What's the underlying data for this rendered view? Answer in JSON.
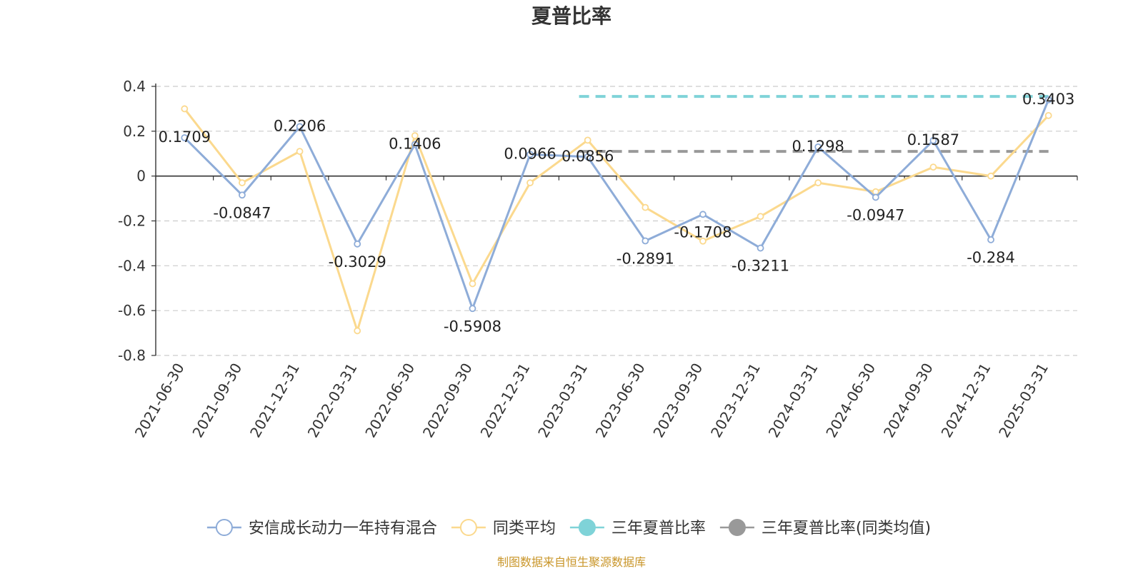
{
  "chart_data": {
    "type": "line",
    "title": "夏普比率",
    "categories": [
      "2021-06-30",
      "2021-09-30",
      "2021-12-31",
      "2022-03-31",
      "2022-06-30",
      "2022-09-30",
      "2022-12-31",
      "2023-03-31",
      "2023-06-30",
      "2023-09-30",
      "2023-12-31",
      "2024-03-31",
      "2024-06-30",
      "2024-09-30",
      "2024-12-31",
      "2025-03-31"
    ],
    "ylim": [
      -0.8,
      0.4
    ],
    "yticks": [
      "0.4",
      "0.2",
      "0",
      "-0.2",
      "-0.4",
      "-0.6",
      "-0.8"
    ],
    "grid": true,
    "legend_position": "bottom",
    "series": [
      {
        "name": "安信成长动力一年持有混合",
        "color": "#8eacd8",
        "values": [
          0.1709,
          -0.0847,
          0.2206,
          -0.3029,
          0.1406,
          -0.5908,
          0.0966,
          0.0856,
          -0.2891,
          -0.1708,
          -0.3211,
          0.1298,
          -0.0947,
          0.1587,
          -0.284,
          0.3403
        ],
        "labels": [
          "0.1709",
          "-0.0847",
          "0.2206",
          "-0.3029",
          "0.1406",
          "-0.5908",
          "0.0966",
          "0.0856",
          "-0.2891",
          "-0.1708",
          "-0.3211",
          "0.1298",
          "-0.0947",
          "0.1587",
          "-0.284",
          "0.3403"
        ]
      },
      {
        "name": "同类平均",
        "color": "#fbd98e",
        "values": [
          0.3,
          -0.03,
          0.11,
          -0.69,
          0.18,
          -0.48,
          -0.03,
          0.16,
          -0.14,
          -0.29,
          -0.18,
          -0.03,
          -0.07,
          0.04,
          0.0,
          0.27
        ]
      }
    ],
    "reference_lines": [
      {
        "name": "三年夏普比率",
        "color": "#7fd3d8",
        "value": 0.355,
        "from_index": 7,
        "to_index": 15
      },
      {
        "name": "三年夏普比率(同类均值)",
        "color": "#999999",
        "value": 0.11,
        "from_index": 7,
        "to_index": 15
      }
    ],
    "source": "制图数据来自恒生聚源数据库"
  }
}
